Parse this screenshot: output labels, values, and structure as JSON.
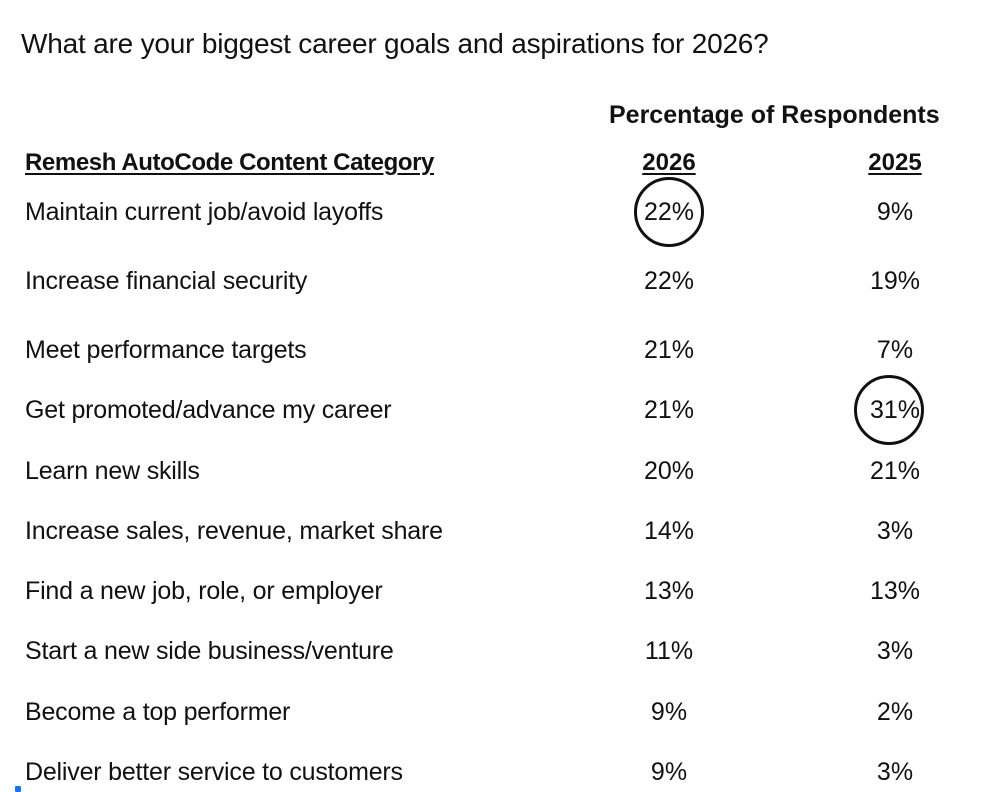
{
  "question": "What are your biggest career goals and aspirations for 2026?",
  "chart_data": {
    "type": "table",
    "title": "What are your biggest career goals and aspirations for 2026?",
    "header_group": "Percentage of Respondents",
    "columns": [
      "Remesh AutoCode Content Category",
      "2026",
      "2025"
    ],
    "rows": [
      {
        "label": "Maintain current job/avoid layoffs",
        "v2026": "22%",
        "v2025": "9%",
        "circled": "2026"
      },
      {
        "label": "Increase financial security",
        "v2026": "22%",
        "v2025": "19%",
        "circled": ""
      },
      {
        "label": "Meet performance targets",
        "v2026": "21%",
        "v2025": "7%",
        "circled": ""
      },
      {
        "label": "Get promoted/advance my career",
        "v2026": "21%",
        "v2025": "31%",
        "circled": "2025"
      },
      {
        "label": "Learn new skills",
        "v2026": "20%",
        "v2025": "21%",
        "circled": ""
      },
      {
        "label": "Increase sales, revenue, market share",
        "v2026": "14%",
        "v2025": "3%",
        "circled": ""
      },
      {
        "label": "Find a new job, role, or employer",
        "v2026": "13%",
        "v2025": "13%",
        "circled": ""
      },
      {
        "label": "Start a new side business/venture",
        "v2026": "11%",
        "v2025": "3%",
        "circled": ""
      },
      {
        "label": "Become a top performer",
        "v2026": "9%",
        "v2025": "2%",
        "circled": ""
      },
      {
        "label": "Deliver better service to customers",
        "v2026": "9%",
        "v2025": "3%",
        "circled": ""
      }
    ]
  }
}
